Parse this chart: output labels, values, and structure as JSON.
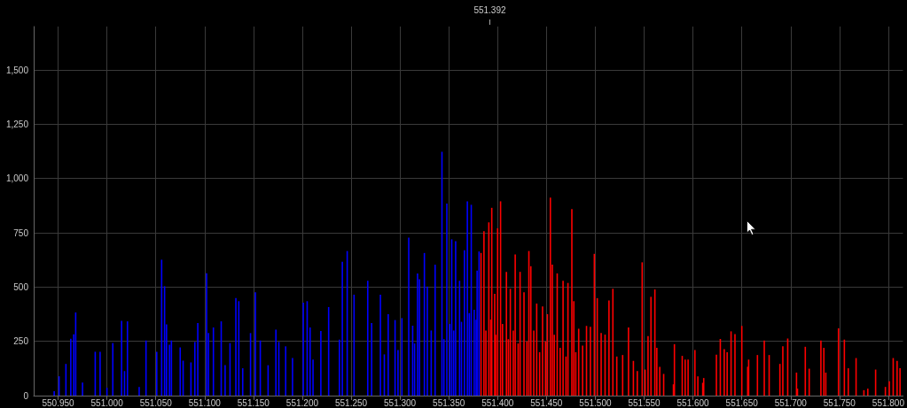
{
  "chart_data": {
    "type": "bar",
    "xlim": [
      550.925,
      551.815
    ],
    "xticks": [
      {
        "value": 550.95,
        "label": "550.950"
      },
      {
        "value": 551.0,
        "label": "551.000"
      },
      {
        "value": 551.05,
        "label": "551.050"
      },
      {
        "value": 551.1,
        "label": "551.100"
      },
      {
        "value": 551.15,
        "label": "551.150"
      },
      {
        "value": 551.2,
        "label": "551.200"
      },
      {
        "value": 551.25,
        "label": "551.250"
      },
      {
        "value": 551.3,
        "label": "551.300"
      },
      {
        "value": 551.35,
        "label": "551.350"
      },
      {
        "value": 551.4,
        "label": "551.400"
      },
      {
        "value": 551.45,
        "label": "551.450"
      },
      {
        "value": 551.5,
        "label": "551.500"
      },
      {
        "value": 551.55,
        "label": "551.550"
      },
      {
        "value": 551.6,
        "label": "551.600"
      },
      {
        "value": 551.65,
        "label": "551.650"
      },
      {
        "value": 551.7,
        "label": "551.700"
      },
      {
        "value": 551.75,
        "label": "551.750"
      },
      {
        "value": 551.8,
        "label": "551.800"
      }
    ],
    "ylim": [
      0,
      1700
    ],
    "yticks": [
      0,
      250,
      500,
      750,
      {
        "value": 1000,
        "label": "1,000"
      },
      {
        "value": 1250,
        "label": "1,250"
      },
      {
        "value": 1500,
        "label": "1,500"
      }
    ],
    "grid": true,
    "ref_lines": [
      {
        "axis": "x",
        "value": 551.392,
        "label": "551.392",
        "color": "#aaaaaa"
      }
    ],
    "series": [
      {
        "color": "#0000ff",
        "x": [
          550.946,
          550.951,
          550.958,
          550.963,
          550.966,
          550.968,
          550.975,
          550.988,
          550.993,
          551.0,
          551.006,
          551.015,
          551.018,
          551.021,
          551.033,
          551.04,
          551.051,
          551.056,
          551.059,
          551.061,
          551.064,
          551.066,
          551.075,
          551.078,
          551.086,
          551.09,
          551.093,
          551.102,
          551.104,
          551.109,
          551.117,
          551.121,
          551.126,
          551.132,
          551.135,
          551.139,
          551.147,
          551.152,
          551.157,
          551.165,
          551.173,
          551.176,
          551.183,
          551.19,
          551.201,
          551.205,
          551.208,
          551.211,
          551.219,
          551.227,
          551.238,
          551.241,
          551.246,
          551.253,
          551.267,
          551.271,
          551.28,
          551.284,
          551.288,
          551.295,
          551.298,
          551.302,
          551.309,
          551.313,
          551.315,
          551.318,
          551.32,
          551.325,
          551.328,
          551.332,
          551.336,
          551.343,
          551.345,
          551.348,
          551.351,
          551.353,
          551.355,
          551.357,
          551.361,
          551.363,
          551.366,
          551.369,
          551.371,
          551.373,
          551.376,
          551.378,
          551.379,
          551.381
        ],
        "values": [
          20,
          89,
          146,
          262,
          282,
          383,
          60,
          202,
          202,
          36,
          242,
          344,
          113,
          342,
          40,
          254,
          202,
          626,
          504,
          328,
          234,
          254,
          222,
          161,
          153,
          247,
          334,
          564,
          288,
          314,
          342,
          141,
          242,
          449,
          435,
          126,
          288,
          476,
          254,
          140,
          304,
          247,
          227,
          173,
          428,
          435,
          314,
          166,
          298,
          408,
          258,
          617,
          666,
          465,
          529,
          334,
          465,
          190,
          375,
          348,
          210,
          357,
          728,
          322,
          240,
          563,
          536,
          657,
          502,
          300,
          603,
          1123,
          260,
          885,
          330,
          720,
          300,
          711,
          529,
          340,
          670,
          895,
          380,
          879,
          395,
          350,
          576,
          664
        ]
      },
      {
        "color": "#ff0000",
        "x": [
          551.383,
          551.386,
          551.388,
          551.391,
          551.393,
          551.394,
          551.397,
          551.398,
          551.4,
          551.403,
          551.405,
          551.409,
          551.411,
          551.413,
          551.416,
          551.418,
          551.421,
          551.423,
          551.427,
          551.43,
          551.432,
          551.434,
          551.437,
          551.44,
          551.443,
          551.446,
          551.449,
          551.451,
          551.454,
          551.456,
          551.458,
          551.461,
          551.464,
          551.467,
          551.47,
          551.472,
          551.476,
          551.478,
          551.48,
          551.483,
          551.487,
          551.491,
          551.495,
          551.499,
          551.502,
          551.506,
          551.51,
          551.514,
          551.518,
          551.522,
          551.528,
          551.534,
          551.539,
          551.543,
          551.548,
          551.551,
          551.554,
          551.557,
          551.561,
          551.563,
          551.566,
          551.57,
          551.58,
          551.581,
          551.589,
          551.592,
          551.595,
          551.602,
          551.605,
          551.61,
          551.611,
          551.624,
          551.628,
          551.632,
          551.635,
          551.639,
          551.643,
          551.65,
          551.656,
          551.657,
          551.666,
          551.673,
          551.678,
          551.689,
          551.692,
          551.697,
          551.706,
          551.707,
          551.715,
          551.719,
          551.731,
          551.734,
          551.736,
          551.749,
          551.755,
          551.759,
          551.767,
          551.775,
          551.779,
          551.787,
          551.797,
          551.801,
          551.805,
          551.809,
          551.812
        ],
        "values": [
          657,
          757,
          300,
          798,
          350,
          865,
          469,
          280,
          771,
          895,
          330,
          570,
          260,
          492,
          300,
          650,
          240,
          570,
          476,
          250,
          666,
          596,
          300,
          424,
          200,
          411,
          250,
          375,
          912,
          603,
          280,
          563,
          220,
          529,
          180,
          519,
          859,
          435,
          200,
          308,
          230,
          321,
          317,
          653,
          449,
          288,
          281,
          438,
          492,
          180,
          187,
          314,
          160,
          113,
          614,
          120,
          274,
          455,
          489,
          220,
          133,
          100,
          52,
          237,
          183,
          166,
          166,
          210,
          89,
          59,
          81,
          189,
          261,
          214,
          200,
          296,
          283,
          321,
          133,
          166,
          187,
          254,
          187,
          146,
          227,
          263,
          106,
          32,
          225,
          124,
          254,
          220,
          106,
          310,
          258,
          126,
          173,
          25,
          32,
          120,
          40,
          66,
          173,
          160,
          126
        ]
      }
    ]
  }
}
